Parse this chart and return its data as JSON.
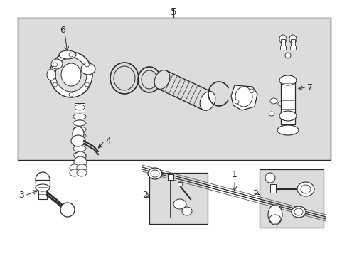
{
  "bg_color": "#ffffff",
  "box_bg": "#e8e8e8",
  "line_color": "#2a2a2a",
  "border_color": "#2a2a2a",
  "label_color": "#1a1a1a",
  "fig_width": 4.89,
  "fig_height": 3.6,
  "dpi": 100
}
